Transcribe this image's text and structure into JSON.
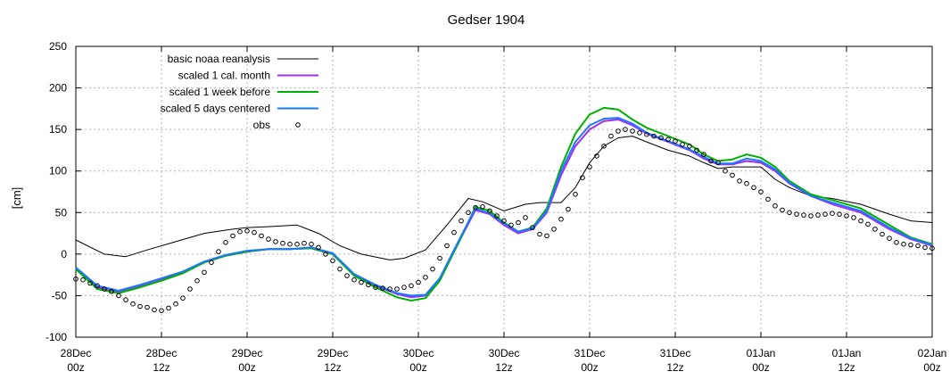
{
  "chart_data": {
    "type": "line",
    "title": "Gedser 1904",
    "xlabel": "",
    "ylabel": "[cm]",
    "ylim": [
      -100,
      250
    ],
    "yticks": [
      -100,
      -50,
      0,
      50,
      100,
      150,
      200,
      250
    ],
    "xlim": [
      0,
      120
    ],
    "x_unit": "hours since 28Dec 00z",
    "xticks": [
      0,
      12,
      24,
      36,
      48,
      60,
      72,
      84,
      96,
      108,
      120
    ],
    "xtick_labels": [
      [
        "28Dec",
        "00z"
      ],
      [
        "28Dec",
        "12z"
      ],
      [
        "29Dec",
        "00z"
      ],
      [
        "29Dec",
        "12z"
      ],
      [
        "30Dec",
        "00z"
      ],
      [
        "30Dec",
        "12z"
      ],
      [
        "31Dec",
        "00z"
      ],
      [
        "31Dec",
        "12z"
      ],
      [
        "01Jan",
        "00z"
      ],
      [
        "01Jan",
        "12z"
      ],
      [
        "02Jan",
        "00z"
      ]
    ],
    "grid": true,
    "legend_position": "top-left",
    "series": [
      {
        "name": "basic noaa reanalysis",
        "color": "#000000",
        "style": "line",
        "x": [
          0,
          4,
          7,
          10,
          14,
          18,
          22,
          24,
          27,
          31,
          34,
          37,
          40,
          44,
          46,
          49,
          52,
          55,
          57,
          60,
          63,
          65,
          68,
          70,
          72,
          74,
          76,
          78,
          80,
          83,
          86,
          88,
          90,
          92,
          94,
          96,
          98,
          100,
          103,
          106,
          110,
          114,
          117,
          120
        ],
        "y": [
          17,
          0,
          -3,
          5,
          15,
          25,
          30,
          32,
          33,
          35,
          25,
          10,
          0,
          -7,
          -5,
          5,
          35,
          67,
          63,
          52,
          60,
          62,
          62,
          80,
          110,
          130,
          140,
          142,
          135,
          125,
          118,
          110,
          103,
          105,
          105,
          105,
          90,
          80,
          70,
          67,
          60,
          48,
          40,
          38
        ]
      },
      {
        "name": "scaled 1 cal. month",
        "color": "#a030f0",
        "style": "line",
        "x": [
          0,
          3,
          6,
          9,
          12,
          15,
          18,
          21,
          24,
          27,
          30,
          33,
          36,
          39,
          42,
          45,
          47,
          49,
          51,
          54,
          56,
          58,
          60,
          62,
          64,
          66,
          68,
          70,
          72,
          74,
          76,
          78,
          80,
          83,
          86,
          88,
          90,
          92,
          94,
          96,
          98,
          100,
          103,
          106,
          110,
          114,
          117,
          120
        ],
        "y": [
          -18,
          -40,
          -45,
          -38,
          -30,
          -22,
          -10,
          -2,
          3,
          6,
          6,
          7,
          0,
          -25,
          -38,
          -48,
          -52,
          -50,
          -30,
          20,
          53,
          48,
          35,
          25,
          30,
          50,
          95,
          130,
          150,
          160,
          162,
          155,
          145,
          135,
          125,
          115,
          108,
          108,
          112,
          110,
          100,
          85,
          70,
          60,
          50,
          30,
          18,
          10
        ]
      },
      {
        "name": "scaled 1 week before",
        "color": "#00b000",
        "style": "line",
        "x": [
          0,
          3,
          6,
          9,
          12,
          15,
          18,
          21,
          24,
          27,
          30,
          33,
          36,
          39,
          42,
          45,
          47,
          49,
          51,
          54,
          56,
          58,
          60,
          62,
          64,
          66,
          68,
          70,
          72,
          74,
          76,
          78,
          80,
          83,
          86,
          88,
          90,
          92,
          94,
          96,
          98,
          100,
          103,
          106,
          110,
          114,
          117,
          120
        ],
        "y": [
          -18,
          -42,
          -47,
          -40,
          -32,
          -23,
          -10,
          -2,
          3,
          6,
          6,
          7,
          0,
          -26,
          -40,
          -52,
          -56,
          -53,
          -32,
          20,
          57,
          52,
          38,
          27,
          32,
          55,
          105,
          145,
          168,
          176,
          174,
          162,
          152,
          142,
          132,
          120,
          112,
          114,
          120,
          116,
          105,
          88,
          72,
          65,
          55,
          35,
          20,
          12
        ]
      },
      {
        "name": "scaled 5 days centered",
        "color": "#1e78ff",
        "style": "line",
        "x": [
          0,
          3,
          6,
          9,
          12,
          15,
          18,
          21,
          24,
          27,
          30,
          33,
          36,
          39,
          42,
          45,
          47,
          49,
          51,
          54,
          56,
          58,
          60,
          62,
          64,
          66,
          68,
          70,
          72,
          74,
          76,
          78,
          80,
          83,
          86,
          88,
          90,
          92,
          94,
          96,
          98,
          100,
          103,
          106,
          110,
          114,
          117,
          120
        ],
        "y": [
          -16,
          -38,
          -44,
          -37,
          -29,
          -21,
          -9,
          -1,
          4,
          6,
          6,
          8,
          1,
          -24,
          -37,
          -47,
          -50,
          -49,
          -29,
          22,
          55,
          49,
          37,
          27,
          31,
          52,
          100,
          135,
          155,
          163,
          164,
          157,
          146,
          136,
          126,
          117,
          109,
          109,
          115,
          112,
          102,
          86,
          70,
          62,
          52,
          32,
          19,
          11
        ]
      },
      {
        "name": "obs",
        "color": "#000000",
        "style": "markers",
        "x": [
          0,
          1,
          2,
          3,
          4,
          5,
          6,
          7,
          8,
          9,
          10,
          11,
          12,
          13,
          14,
          15,
          16,
          17,
          18,
          19,
          20,
          21,
          22,
          23,
          24,
          25,
          26,
          27,
          28,
          29,
          30,
          31,
          32,
          33,
          34,
          35,
          36,
          37,
          38,
          39,
          40,
          41,
          42,
          43,
          44,
          45,
          46,
          47,
          48,
          49,
          50,
          51,
          52,
          53,
          54,
          55,
          56,
          57,
          58,
          59,
          60,
          61,
          62,
          63,
          64,
          65,
          66,
          67,
          68,
          69,
          70,
          71,
          72,
          73,
          74,
          75,
          76,
          77,
          78,
          79,
          80,
          81,
          82,
          83,
          84,
          85,
          86,
          87,
          88,
          89,
          90,
          91,
          92,
          93,
          94,
          95,
          96,
          97,
          98,
          99,
          100,
          101,
          102,
          103,
          104,
          105,
          106,
          107,
          108,
          109,
          110,
          111,
          112,
          113,
          114,
          115,
          116,
          117,
          118,
          119,
          120
        ],
        "y": [
          -30,
          -31,
          -35,
          -38,
          -42,
          -45,
          -50,
          -55,
          -60,
          -63,
          -64,
          -67,
          -68,
          -65,
          -60,
          -53,
          -42,
          -32,
          -22,
          -10,
          3,
          14,
          22,
          27,
          28,
          26,
          22,
          18,
          15,
          13,
          12,
          12,
          13,
          12,
          8,
          0,
          -8,
          -18,
          -26,
          -31,
          -34,
          -37,
          -40,
          -41,
          -42,
          -42,
          -40,
          -38,
          -34,
          -28,
          -18,
          -5,
          10,
          26,
          40,
          50,
          56,
          57,
          52,
          46,
          40,
          35,
          38,
          44,
          32,
          24,
          22,
          30,
          42,
          54,
          72,
          92,
          105,
          118,
          130,
          142,
          148,
          150,
          148,
          146,
          144,
          142,
          140,
          138,
          136,
          132,
          130,
          125,
          120,
          112,
          110,
          100,
          95,
          88,
          85,
          80,
          75,
          66,
          58,
          53,
          50,
          48,
          47,
          46,
          47,
          48,
          49,
          48,
          46,
          44,
          40,
          36,
          30,
          24,
          19,
          14,
          12,
          11,
          10,
          8,
          7
        ]
      }
    ]
  }
}
